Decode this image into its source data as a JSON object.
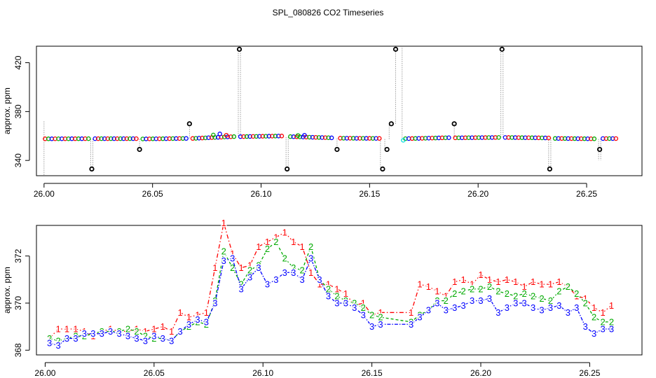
{
  "title": "SPL_080826  CO2 Timeseries",
  "chart_data": [
    {
      "type": "scatter",
      "ylabel": "approx. ppm",
      "xlim": [
        25.9965,
        26.2755
      ],
      "ylim": [
        327.5,
        433.5
      ],
      "xticks": [
        26.0,
        26.05,
        26.1,
        26.15,
        26.2,
        26.25
      ],
      "xtick_labels": [
        "26.00",
        "26.05",
        "26.10",
        "26.15",
        "26.20",
        "26.25"
      ],
      "yticks": [
        340,
        380,
        420
      ],
      "ytick_labels": [
        "340",
        "380",
        "420"
      ],
      "grid": false,
      "series_colors": [
        "#ff0000",
        "#00aa00",
        "#0000ff"
      ],
      "highlight_color": "#00dddd",
      "level_segments": [
        {
          "x_start": 26.0005,
          "x_end": 26.0205,
          "y_start": 357.7,
          "y_end": 357.8
        },
        {
          "x_start": 26.0235,
          "x_end": 26.0425,
          "y_start": 357.8,
          "y_end": 357.8
        },
        {
          "x_start": 26.0455,
          "x_end": 26.0655,
          "y_start": 357.6,
          "y_end": 358.0
        },
        {
          "x_start": 26.0685,
          "x_end": 26.0875,
          "y_start": 358.0,
          "y_end": 359.5
        },
        {
          "x_start": 26.0905,
          "x_end": 26.1095,
          "y_start": 359.5,
          "y_end": 360.0
        },
        {
          "x_start": 26.1135,
          "x_end": 26.1325,
          "y_start": 359.5,
          "y_end": 358.5
        },
        {
          "x_start": 26.1365,
          "x_end": 26.1545,
          "y_start": 358.2,
          "y_end": 358.0
        },
        {
          "x_start": 26.1665,
          "x_end": 26.1865,
          "y_start": 357.8,
          "y_end": 358.6
        },
        {
          "x_start": 26.1895,
          "x_end": 26.2095,
          "y_start": 358.5,
          "y_end": 358.8
        },
        {
          "x_start": 26.2125,
          "x_end": 26.2325,
          "y_start": 358.8,
          "y_end": 358.4
        },
        {
          "x_start": 26.2355,
          "x_end": 26.2535,
          "y_start": 358.0,
          "y_end": 357.7
        },
        {
          "x_start": 26.2575,
          "x_end": 26.2635,
          "y_start": 357.9,
          "y_end": 357.9
        }
      ],
      "bump_points": [
        {
          "x": 26.078,
          "y": 360.8
        },
        {
          "x": 26.081,
          "y": 361.7
        },
        {
          "x": 26.084,
          "y": 360.6
        },
        {
          "x": 26.117,
          "y": 360.4
        },
        {
          "x": 26.12,
          "y": 360.6
        }
      ],
      "cyan_point": {
        "x": 26.1655,
        "y": 356.5
      },
      "outliers": [
        {
          "x": 26.022,
          "y": 333
        },
        {
          "x": 26.044,
          "y": 349
        },
        {
          "x": 26.067,
          "y": 370
        },
        {
          "x": 26.09,
          "y": 431
        },
        {
          "x": 26.112,
          "y": 333
        },
        {
          "x": 26.135,
          "y": 349
        },
        {
          "x": 26.156,
          "y": 333
        },
        {
          "x": 26.158,
          "y": 349
        },
        {
          "x": 26.16,
          "y": 370
        },
        {
          "x": 26.162,
          "y": 431
        },
        {
          "x": 26.189,
          "y": 370
        },
        {
          "x": 26.211,
          "y": 431
        },
        {
          "x": 26.233,
          "y": 333
        },
        {
          "x": 26.256,
          "y": 349
        }
      ],
      "dotted_lines": [
        {
          "x": 26.0,
          "y_from": 372,
          "y_to": 327.5
        },
        {
          "x": 26.0215,
          "y_from": 357.5,
          "y_to": 333
        },
        {
          "x": 26.0225,
          "y_from": 357.5,
          "y_to": 333
        },
        {
          "x": 26.044,
          "y_from": 357.5,
          "y_to": 349
        },
        {
          "x": 26.067,
          "y_from": 358,
          "y_to": 370
        },
        {
          "x": 26.0895,
          "y_from": 360,
          "y_to": 431
        },
        {
          "x": 26.0905,
          "y_from": 360,
          "y_to": 431
        },
        {
          "x": 26.1115,
          "y_from": 359,
          "y_to": 333
        },
        {
          "x": 26.1125,
          "y_from": 359,
          "y_to": 333
        },
        {
          "x": 26.135,
          "y_from": 358,
          "y_to": 349
        },
        {
          "x": 26.155,
          "y_from": 357.5,
          "y_to": 333
        },
        {
          "x": 26.157,
          "y_from": 357.5,
          "y_to": 349
        },
        {
          "x": 26.159,
          "y_from": 357.5,
          "y_to": 370
        },
        {
          "x": 26.162,
          "y_from": 370,
          "y_to": 431
        },
        {
          "x": 26.165,
          "y_from": 357,
          "y_to": 433.5
        },
        {
          "x": 26.189,
          "y_from": 358.5,
          "y_to": 370
        },
        {
          "x": 26.2105,
          "y_from": 359,
          "y_to": 431
        },
        {
          "x": 26.2115,
          "y_from": 359,
          "y_to": 431
        },
        {
          "x": 26.2325,
          "y_from": 358.5,
          "y_to": 333
        },
        {
          "x": 26.2335,
          "y_from": 358.5,
          "y_to": 333
        },
        {
          "x": 26.2555,
          "y_from": 357.5,
          "y_to": 340
        },
        {
          "x": 26.2565,
          "y_from": 357.5,
          "y_to": 340
        }
      ]
    },
    {
      "type": "line",
      "ylabel": "approx. ppm",
      "xlim": [
        25.996,
        26.274
      ],
      "ylim": [
        367.8,
        373.3
      ],
      "xticks": [
        26.0,
        26.05,
        26.1,
        26.15,
        26.2,
        26.25
      ],
      "xtick_labels": [
        "26.00",
        "26.05",
        "26.10",
        "26.15",
        "26.20",
        "26.25"
      ],
      "yticks": [
        368,
        370,
        372
      ],
      "ytick_labels": [
        "368",
        "370",
        "372"
      ],
      "grid": false,
      "x": [
        26.002,
        26.006,
        26.01,
        26.014,
        26.018,
        26.022,
        26.026,
        26.03,
        26.034,
        26.038,
        26.042,
        26.046,
        26.05,
        26.054,
        26.058,
        26.062,
        26.066,
        26.07,
        26.074,
        26.078,
        26.082,
        26.086,
        26.09,
        26.094,
        26.098,
        26.102,
        26.106,
        26.11,
        26.114,
        26.118,
        26.122,
        26.126,
        26.13,
        26.134,
        26.138,
        26.142,
        26.146,
        26.15,
        26.154,
        26.168,
        26.172,
        26.176,
        26.18,
        26.184,
        26.188,
        26.192,
        26.196,
        26.2,
        26.204,
        26.208,
        26.212,
        26.216,
        26.22,
        26.224,
        26.228,
        26.232,
        26.236,
        26.24,
        26.244,
        26.248,
        26.252,
        26.256,
        26.26
      ],
      "series": [
        {
          "values": [
            368.5,
            368.9,
            368.9,
            368.9,
            368.8,
            368.6,
            368.8,
            368.9,
            368.8,
            368.8,
            368.9,
            368.8,
            368.9,
            369.0,
            368.8,
            369.6,
            369.4,
            369.5,
            369.6,
            371.5,
            373.4,
            372.1,
            371.5,
            371.6,
            372.4,
            372.6,
            372.8,
            373.0,
            372.6,
            372.4,
            371.3,
            370.8,
            370.8,
            370.6,
            370.4,
            369.9,
            370.0,
            369.5,
            369.6,
            369.6,
            370.8,
            370.7,
            370.5,
            370.3,
            370.9,
            371.0,
            370.8,
            371.2,
            371.0,
            370.9,
            371.0,
            370.9,
            370.7,
            370.9,
            370.8,
            370.8,
            370.9,
            370.7,
            370.3,
            370.2,
            369.8,
            369.6,
            369.9
          ]
        },
        {
          "values": [
            368.5,
            368.4,
            368.5,
            368.6,
            368.6,
            368.7,
            368.8,
            368.8,
            368.8,
            368.9,
            368.8,
            368.6,
            368.5,
            368.5,
            368.4,
            368.8,
            369.0,
            369.2,
            369.1,
            370.1,
            372.2,
            371.5,
            370.8,
            371.4,
            371.6,
            372.3,
            372.6,
            371.9,
            371.5,
            371.4,
            372.4,
            371.0,
            370.6,
            370.3,
            370.1,
            370.0,
            369.8,
            369.5,
            369.4,
            369.2,
            369.5,
            369.7,
            370.1,
            370.1,
            370.4,
            370.5,
            370.6,
            370.6,
            370.7,
            370.5,
            370.4,
            370.3,
            370.4,
            370.3,
            370.2,
            370.1,
            370.5,
            370.7,
            370.4,
            370.0,
            369.4,
            369.2,
            369.2
          ]
        },
        {
          "values": [
            368.3,
            368.2,
            368.5,
            368.5,
            368.7,
            368.7,
            368.7,
            368.8,
            368.7,
            368.6,
            368.5,
            368.4,
            368.6,
            368.5,
            368.4,
            368.8,
            369.1,
            369.3,
            369.2,
            370.0,
            371.8,
            371.9,
            370.6,
            371.1,
            371.5,
            370.8,
            371.0,
            371.3,
            371.3,
            371.0,
            371.9,
            371.0,
            370.3,
            370.0,
            370.0,
            369.8,
            369.5,
            369.0,
            369.1,
            369.1,
            369.4,
            369.7,
            370.0,
            369.7,
            369.8,
            369.9,
            370.1,
            370.1,
            370.2,
            369.6,
            369.8,
            370.0,
            370.0,
            369.8,
            369.7,
            369.8,
            369.9,
            369.6,
            369.8,
            369.0,
            368.7,
            368.9,
            368.9
          ]
        }
      ],
      "series_labels": [
        "1",
        "2",
        "3"
      ],
      "series_colors": [
        "#ff0000",
        "#00aa00",
        "#0000ff"
      ]
    }
  ]
}
